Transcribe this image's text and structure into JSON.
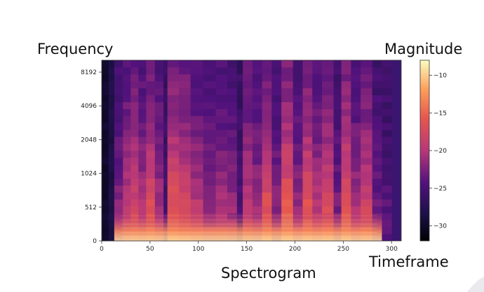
{
  "labels": {
    "frequency": "Frequency",
    "magnitude": "Magnitude",
    "timeframe": "Timeframe",
    "spectrogram": "Spectrogram"
  },
  "chart_data": {
    "type": "heatmap",
    "title": "",
    "x_ticks": [
      0,
      50,
      100,
      150,
      200,
      250,
      300
    ],
    "x_range": [
      0,
      310
    ],
    "y_ticks": [
      "0",
      "512",
      "1024",
      "2048",
      "4096",
      "8192"
    ],
    "y_scale": "log-like (tick labels evenly spaced)",
    "colorbar": {
      "ticks": [
        -10,
        -15,
        -20,
        -25,
        -30
      ],
      "range": [
        -32,
        -8
      ],
      "colormap": "magma"
    },
    "segments": [
      {
        "start": 0,
        "end": 7,
        "energy": 0.02
      },
      {
        "start": 7,
        "end": 13,
        "energy": 0.08
      },
      {
        "start": 13,
        "end": 22,
        "energy": 0.35
      },
      {
        "start": 22,
        "end": 30,
        "energy": 0.55
      },
      {
        "start": 30,
        "end": 38,
        "energy": 0.62
      },
      {
        "start": 38,
        "end": 46,
        "energy": 0.48
      },
      {
        "start": 46,
        "end": 55,
        "energy": 0.7
      },
      {
        "start": 55,
        "end": 64,
        "energy": 0.45
      },
      {
        "start": 64,
        "end": 68,
        "energy": 0.12
      },
      {
        "start": 68,
        "end": 80,
        "energy": 0.75
      },
      {
        "start": 80,
        "end": 92,
        "energy": 0.68
      },
      {
        "start": 92,
        "end": 105,
        "energy": 0.52
      },
      {
        "start": 105,
        "end": 118,
        "energy": 0.4
      },
      {
        "start": 118,
        "end": 130,
        "energy": 0.46
      },
      {
        "start": 130,
        "end": 140,
        "energy": 0.38
      },
      {
        "start": 140,
        "end": 146,
        "energy": 0.15
      },
      {
        "start": 146,
        "end": 156,
        "energy": 0.55
      },
      {
        "start": 156,
        "end": 166,
        "energy": 0.42
      },
      {
        "start": 166,
        "end": 176,
        "energy": 0.72
      },
      {
        "start": 176,
        "end": 186,
        "energy": 0.35
      },
      {
        "start": 186,
        "end": 198,
        "energy": 0.78
      },
      {
        "start": 198,
        "end": 208,
        "energy": 0.4
      },
      {
        "start": 208,
        "end": 218,
        "energy": 0.74
      },
      {
        "start": 218,
        "end": 228,
        "energy": 0.5
      },
      {
        "start": 228,
        "end": 240,
        "energy": 0.66
      },
      {
        "start": 240,
        "end": 248,
        "energy": 0.3
      },
      {
        "start": 248,
        "end": 258,
        "energy": 0.76
      },
      {
        "start": 258,
        "end": 268,
        "energy": 0.45
      },
      {
        "start": 268,
        "end": 280,
        "energy": 0.62
      },
      {
        "start": 280,
        "end": 290,
        "energy": 0.28
      },
      {
        "start": 290,
        "end": 300,
        "energy": 0.2
      }
    ]
  }
}
